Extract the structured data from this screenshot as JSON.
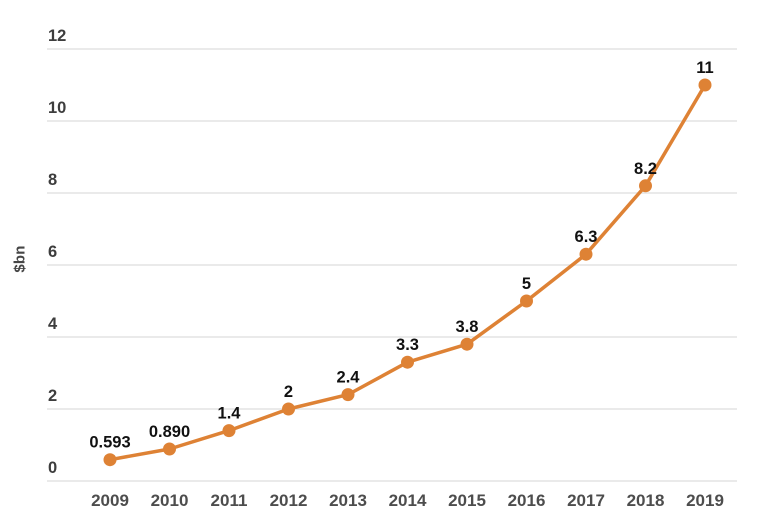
{
  "chart_data": {
    "type": "line",
    "title": "",
    "xlabel": "",
    "ylabel": "$bn",
    "categories": [
      "2009",
      "2010",
      "2011",
      "2012",
      "2013",
      "2014",
      "2015",
      "2016",
      "2017",
      "2018",
      "2019"
    ],
    "values": [
      0.593,
      0.89,
      1.4,
      2,
      2.4,
      3.3,
      3.8,
      5,
      6.3,
      8.2,
      11
    ],
    "point_labels": [
      "0.593",
      "0.890",
      "1.4",
      "2",
      "2.4",
      "3.3",
      "3.8",
      "5",
      "6.3",
      "8.2",
      "11"
    ],
    "ylim": [
      0,
      12
    ],
    "yticks": [
      0,
      2,
      4,
      6,
      8,
      10,
      12
    ],
    "grid": true,
    "legend": false,
    "marker_shape": "circle",
    "colors": {
      "line": "#DE8235",
      "marker": "#DE8235",
      "grid": "#E4E4E4",
      "y_tick_text": "#3D3D3D",
      "x_tick_text": "#4D4D4D",
      "data_label": "#111111",
      "axis_title_text": "#464646",
      "background": "#FFFFFF"
    }
  }
}
